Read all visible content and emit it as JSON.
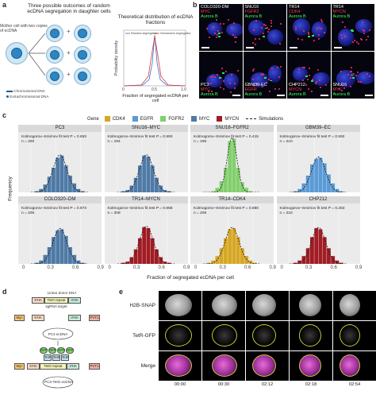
{
  "panel_a": {
    "letter": "a",
    "title_left": "Three possible outcomes of random ecDNA segregation in daughter cells",
    "mother_label": "Mother cell with two copies of ecDNA",
    "legend_chromosomal": "Chromosomal DNA",
    "legend_extrachromosomal": "Extrachromosomal DNA",
    "title_right": "Theoretical distribution of ecDNA fractions",
    "plot_ylabel": "Probability density",
    "plot_xlabel": "Fraction of segregated ecDNA per cell",
    "plot_legend": [
      "Random segregation",
      "Nonrandom segregation"
    ],
    "plot_xticks": [
      "0",
      "0.5",
      "1.0"
    ]
  },
  "panel_b": {
    "letter": "b",
    "tiles": [
      {
        "name": "COLO320-DM",
        "gene": "MYC",
        "marker": "Aurora B"
      },
      {
        "name": "SNU16",
        "gene": "FGFR2",
        "marker": "Aurora B"
      },
      {
        "name": "TR14",
        "gene": "CDK4",
        "marker": "Aurora B"
      },
      {
        "name": "TR14",
        "gene": "MYCN",
        "marker": "Aurora B"
      },
      {
        "name": "PC3",
        "gene": "MYC",
        "marker": "Aurora B"
      },
      {
        "name": "GBM39-EC",
        "gene": "EGFR",
        "marker": "Aurora B"
      },
      {
        "name": "CHP212",
        "gene": "MYCN",
        "marker": "Aurora B"
      },
      {
        "name": "SNU16",
        "gene": "MYC",
        "marker": "Aurora B"
      }
    ]
  },
  "panel_c": {
    "letter": "c",
    "legend_title": "Gene",
    "legend": [
      {
        "label": "CDK4",
        "color": "#d7a623"
      },
      {
        "label": "EGFR",
        "color": "#5a9ad6"
      },
      {
        "label": "FGFR2",
        "color": "#82cf6d"
      },
      {
        "label": "MYC",
        "color": "#4f7aa6"
      },
      {
        "label": "MYCN",
        "color": "#a11c24"
      },
      {
        "label": "Simulations",
        "color": "#222222"
      }
    ],
    "ylabel": "Frequency",
    "xlabel": "Fraction of segregated ecDNA per cell",
    "xticks": [
      "0",
      "0.3",
      "0.6",
      "0.9"
    ],
    "facets": [
      {
        "title": "PC3",
        "test": "Kolmogorov–Smirnov fit test P = 0.653",
        "n": "n = 200",
        "gene": "MYC"
      },
      {
        "title": "SNU16–MYC",
        "test": "Kolmogorov–Smirnov fit test P = 0.993",
        "n": "n = 194",
        "gene": "MYC"
      },
      {
        "title": "SNU16–FGFR2",
        "test": "Kolmogorov–Smirnov fit test P = 0.415",
        "n": "n = 196",
        "gene": "FGFR2"
      },
      {
        "title": "GBM39–EC",
        "test": "Kolmogorov–Smirnov fit test P = 0.592",
        "n": "n = 210",
        "gene": "EGFR"
      },
      {
        "title": "COLO320–DM",
        "test": "Kolmogorov–Smirnov fit test P = 0.973",
        "n": "n = 206",
        "gene": "MYC"
      },
      {
        "title": "TR14–MYCN",
        "test": "Kolmogorov–Smirnov fit test P = 0.968",
        "n": "n = 208",
        "gene": "MYCN"
      },
      {
        "title": "TR14–CDK4",
        "test": "Kolmogorov–Smirnov fit test P = 0.880",
        "n": "n = 208",
        "gene": "CDK4"
      },
      {
        "title": "CHP212",
        "test": "Kolmogorov–Smirnov fit test P = 0.253",
        "n": "n = 210",
        "gene": "MYCN"
      }
    ]
  },
  "chart_data": {
    "type": "bar",
    "title": "",
    "xlabel": "Fraction of segregated ecDNA per cell",
    "ylabel": "Frequency",
    "xlim": [
      0,
      1
    ],
    "x": [
      0.225,
      0.275,
      0.325,
      0.375,
      0.425,
      0.475,
      0.525,
      0.575,
      0.625,
      0.675,
      0.725,
      0.775
    ],
    "series": [
      {
        "name": "PC3",
        "values": [
          1,
          3,
          7,
          14,
          22,
          31,
          33,
          24,
          15,
          8,
          3,
          1
        ]
      },
      {
        "name": "SNU16–MYC",
        "values": [
          1,
          2,
          6,
          13,
          24,
          33,
          32,
          24,
          13,
          6,
          2,
          1
        ]
      },
      {
        "name": "SNU16–FGFR2",
        "values": [
          0,
          1,
          4,
          10,
          22,
          46,
          48,
          22,
          9,
          4,
          1,
          0
        ]
      },
      {
        "name": "GBM39–EC",
        "values": [
          1,
          3,
          8,
          15,
          25,
          30,
          31,
          26,
          16,
          8,
          3,
          1
        ]
      },
      {
        "name": "COLO320–DM",
        "values": [
          1,
          3,
          8,
          15,
          24,
          30,
          31,
          25,
          15,
          8,
          3,
          1
        ]
      },
      {
        "name": "TR14–MYCN",
        "values": [
          1,
          2,
          6,
          13,
          23,
          33,
          32,
          23,
          13,
          6,
          2,
          1
        ]
      },
      {
        "name": "TR14–CDK4",
        "values": [
          1,
          3,
          7,
          14,
          23,
          31,
          32,
          24,
          14,
          7,
          3,
          1
        ]
      },
      {
        "name": "CHP212",
        "values": [
          1,
          3,
          7,
          14,
          24,
          32,
          31,
          24,
          14,
          7,
          3,
          1
        ]
      }
    ]
  },
  "panel_d": {
    "letter": "d",
    "linear_donor": "Linear donor DNA",
    "box_5ha": "5′HA",
    "box_teto": "TetO repeat",
    "box_3ha": "3′HA",
    "sgrna": "sgRNA target",
    "myc": "Myc",
    "pvt1": "PVT1",
    "pc3_ecdna": "PC3 ecDNA",
    "tetr": "TetR",
    "gfp": "GFP",
    "pc3_teto": "PC3-TetO ecDNA"
  },
  "panel_e": {
    "letter": "e",
    "rows": [
      "H2B-SNAP",
      "TetR-GFP",
      "Merge"
    ],
    "times": [
      "00:00",
      "00:30",
      "02:12",
      "02:18",
      "02:54"
    ]
  }
}
